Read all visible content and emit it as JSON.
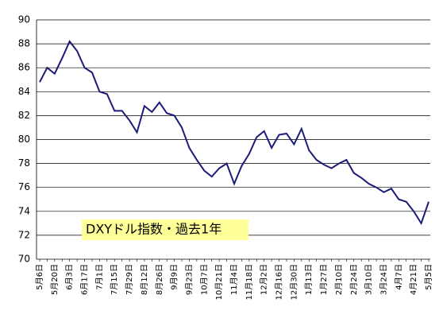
{
  "chart_data": {
    "type": "line",
    "annotation": "DXYドル指数・過去1年",
    "categories": [
      "5月6日",
      null,
      "5月20日",
      null,
      "6月3日",
      null,
      "6月17日",
      null,
      "7月1日",
      null,
      "7月15日",
      null,
      "7月29日",
      null,
      "8月12日",
      null,
      "8月26日",
      null,
      "9月9日",
      null,
      "9月23日",
      null,
      "10月7日",
      null,
      "10月21日",
      null,
      "11月4日",
      null,
      "11月18日",
      null,
      "12月2日",
      null,
      "12月16日",
      null,
      "12月30日",
      null,
      "1月13日",
      null,
      "1月27日",
      null,
      "2月10日",
      null,
      "2月24日",
      null,
      "3月10日",
      null,
      "3月24日",
      null,
      "4月7日",
      null,
      "4月21日",
      null,
      "5月5日"
    ],
    "values": [
      84.8,
      86.0,
      85.5,
      86.8,
      88.2,
      87.4,
      86.0,
      85.6,
      84.0,
      83.8,
      82.4,
      82.4,
      81.6,
      80.6,
      82.8,
      82.3,
      83.1,
      82.2,
      82.0,
      81.0,
      79.3,
      78.3,
      77.4,
      76.9,
      77.6,
      78.0,
      76.3,
      77.8,
      78.8,
      80.2,
      80.7,
      79.3,
      80.4,
      80.5,
      79.6,
      80.9,
      79.1,
      78.3,
      77.9,
      77.6,
      78.0,
      78.3,
      77.2,
      76.8,
      76.3,
      76.0,
      75.6,
      75.9,
      75.0,
      74.8,
      74.0,
      73.0,
      74.8
    ],
    "color": "#1c1c78",
    "ylim": [
      70,
      90
    ],
    "yticks": [
      70,
      72,
      74,
      76,
      78,
      80,
      82,
      84,
      86,
      88,
      90
    ],
    "grid": true
  }
}
